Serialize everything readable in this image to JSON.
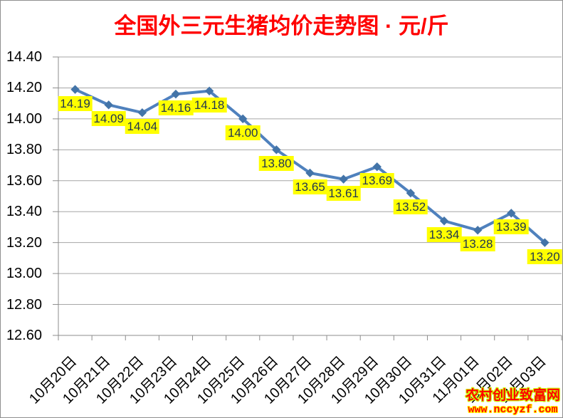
{
  "chart_data": {
    "type": "line",
    "title": "全国外三元生猪均价走势图 · 元/斤",
    "unit": "元/斤",
    "x": [
      "10月20日",
      "10月21日",
      "10月22日",
      "10月23日",
      "10月24日",
      "10月25日",
      "10月26日",
      "10月27日",
      "10月28日",
      "10月29日",
      "10月30日",
      "10月31日",
      "11月01日",
      "11月02日",
      "11月03日"
    ],
    "values": [
      14.19,
      14.09,
      14.04,
      14.16,
      14.18,
      14.0,
      13.8,
      13.65,
      13.61,
      13.69,
      13.52,
      13.34,
      13.28,
      13.39,
      13.2
    ],
    "point_labels": [
      "14.19",
      "14.09",
      "14.04",
      "14.16",
      "14.18",
      "14.00",
      "13.80",
      "13.65",
      "13.61",
      "13.69",
      "13.52",
      "13.34",
      "13.28",
      "13.39",
      "13.20"
    ],
    "ylim": [
      12.6,
      14.4
    ],
    "ytick_step": 0.2,
    "y_ticks": [
      "14.40",
      "14.20",
      "14.00",
      "13.80",
      "13.60",
      "13.40",
      "13.20",
      "13.00",
      "12.80",
      "12.60"
    ],
    "grid": true,
    "legend": "none",
    "marker": "diamond"
  },
  "watermark": {
    "line1": "农村创业致富网",
    "line2": "www.nccyzf.com"
  },
  "colors": {
    "title": "#FF0000",
    "line": "#4F81BD",
    "marker": "#4374A8",
    "grid": "#A6A6A6",
    "axis": "#8C8C8C",
    "label_bg": "#FFFF00",
    "label_text": "#1F3550",
    "axis_text": "#000000",
    "watermark_text": "#FF0000",
    "watermark_outline_1": "#CCFF00",
    "watermark_outline_2": "#FFFF00"
  }
}
